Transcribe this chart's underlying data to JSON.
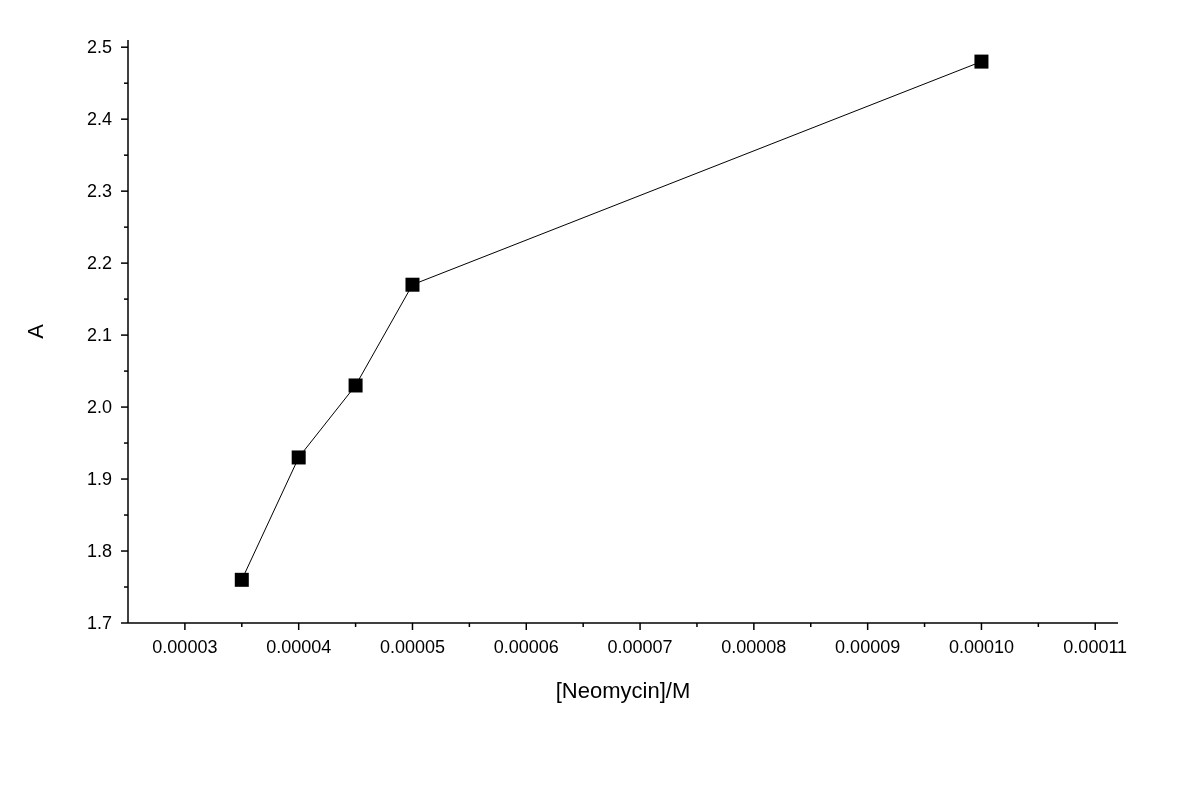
{
  "chart_data": {
    "type": "line",
    "xlabel": "[Neomycin]/M",
    "ylabel": "A",
    "x": [
      3.5e-05,
      4e-05,
      4.5e-05,
      5e-05,
      0.0001
    ],
    "series": [
      {
        "color": "#000000",
        "values": [
          1.76,
          1.93,
          2.03,
          2.17,
          2.48
        ]
      }
    ],
    "marker": "square",
    "line_style": "solid",
    "grid": false,
    "xlim": [
      2.5e-05,
      0.000112
    ],
    "ylim": [
      1.7,
      2.51
    ],
    "xticks": [
      {
        "value": 3e-05,
        "label": "0.00003"
      },
      {
        "value": 3.5e-05,
        "label": null
      },
      {
        "value": 4e-05,
        "label": "0.00004"
      },
      {
        "value": 4.5e-05,
        "label": null
      },
      {
        "value": 5e-05,
        "label": "0.00005"
      },
      {
        "value": 5.5e-05,
        "label": null
      },
      {
        "value": 6e-05,
        "label": "0.00006"
      },
      {
        "value": 6.5e-05,
        "label": null
      },
      {
        "value": 7e-05,
        "label": "0.00007"
      },
      {
        "value": 7.5e-05,
        "label": null
      },
      {
        "value": 8e-05,
        "label": "0.00008"
      },
      {
        "value": 8.5e-05,
        "label": null
      },
      {
        "value": 9e-05,
        "label": "0.00009"
      },
      {
        "value": 9.5e-05,
        "label": null
      },
      {
        "value": 0.0001,
        "label": "0.00010"
      },
      {
        "value": 0.000105,
        "label": null
      },
      {
        "value": 0.00011,
        "label": "0.00011"
      }
    ],
    "yticks": [
      {
        "value": 1.7,
        "label": "1.7"
      },
      {
        "value": 1.75,
        "label": null
      },
      {
        "value": 1.8,
        "label": "1.8"
      },
      {
        "value": 1.85,
        "label": null
      },
      {
        "value": 1.9,
        "label": "1.9"
      },
      {
        "value": 1.95,
        "label": null
      },
      {
        "value": 2.0,
        "label": "2.0"
      },
      {
        "value": 2.05,
        "label": null
      },
      {
        "value": 2.1,
        "label": "2.1"
      },
      {
        "value": 2.15,
        "label": null
      },
      {
        "value": 2.2,
        "label": "2.2"
      },
      {
        "value": 2.25,
        "label": null
      },
      {
        "value": 2.3,
        "label": "2.3"
      },
      {
        "value": 2.35,
        "label": null
      },
      {
        "value": 2.4,
        "label": "2.4"
      },
      {
        "value": 2.45,
        "label": null
      },
      {
        "value": 2.5,
        "label": "2.5"
      }
    ]
  }
}
